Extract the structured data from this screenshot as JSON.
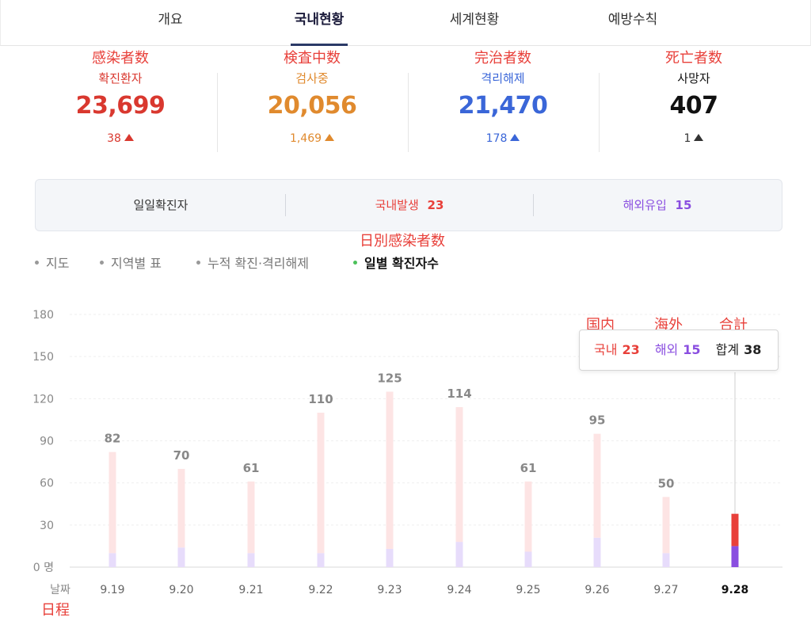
{
  "tabs": [
    {
      "label": "개요",
      "active": false
    },
    {
      "label": "국내현황",
      "active": true
    },
    {
      "label": "세계현황",
      "active": false
    },
    {
      "label": "예방수칙",
      "active": false
    }
  ],
  "stats": [
    {
      "annotation": "感染者数",
      "label": "확진환자",
      "value": "23,699",
      "delta": "38",
      "color": "#d9382f"
    },
    {
      "annotation": "検査中数",
      "label": "검사중",
      "value": "20,056",
      "delta": "1,469",
      "color": "#e08a2e"
    },
    {
      "annotation": "完治者数",
      "label": "격리해제",
      "value": "21,470",
      "delta": "178",
      "color": "#3a66d8"
    },
    {
      "annotation": "死亡者数",
      "label": "사망자",
      "value": "407",
      "delta": "1",
      "color": "#111111"
    }
  ],
  "summary": {
    "label": "일일확진자",
    "domestic_label": "국내발생",
    "domestic_value": "23",
    "overseas_label": "해외유입",
    "overseas_value": "15"
  },
  "subtabs": [
    {
      "label": "지도",
      "active": false
    },
    {
      "label": "지역별 표",
      "active": false
    },
    {
      "label": "누적 확진·격리해제",
      "active": false
    },
    {
      "label": "일별 확진자수",
      "active": true
    }
  ],
  "annotations": {
    "daily": "日別感染者数",
    "domestic": "国内",
    "overseas": "海外",
    "total": "合計",
    "date": "日程"
  },
  "tooltip": {
    "domestic_label": "국내",
    "domestic_value": "23",
    "overseas_label": "해외",
    "overseas_value": "15",
    "total_label": "합계",
    "total_value": "38"
  },
  "colors": {
    "domestic": "#e8403a",
    "overseas": "#8a4ee0",
    "domestic_light": "#fde4e4",
    "overseas_light": "#e7dcfb"
  },
  "chart_data": {
    "type": "bar",
    "categories": [
      "9.19",
      "9.20",
      "9.21",
      "9.22",
      "9.23",
      "9.24",
      "9.25",
      "9.26",
      "9.27",
      "9.28"
    ],
    "series": [
      {
        "name": "국내",
        "values": [
          72,
          56,
          51,
          100,
          112,
          96,
          50,
          74,
          40,
          23
        ]
      },
      {
        "name": "해외",
        "values": [
          10,
          14,
          10,
          10,
          13,
          18,
          11,
          21,
          10,
          15
        ]
      }
    ],
    "totals": [
      82,
      70,
      61,
      110,
      125,
      114,
      61,
      95,
      50,
      38
    ],
    "value_labels": [
      "82",
      "70",
      "61",
      "110",
      "125",
      "114",
      "61",
      "95",
      "50",
      ""
    ],
    "highlight_index": 9,
    "yticks": [
      "0 명",
      "30",
      "60",
      "90",
      "120",
      "150",
      "180"
    ],
    "ylim": [
      0,
      180
    ],
    "xlabel": "날짜"
  }
}
